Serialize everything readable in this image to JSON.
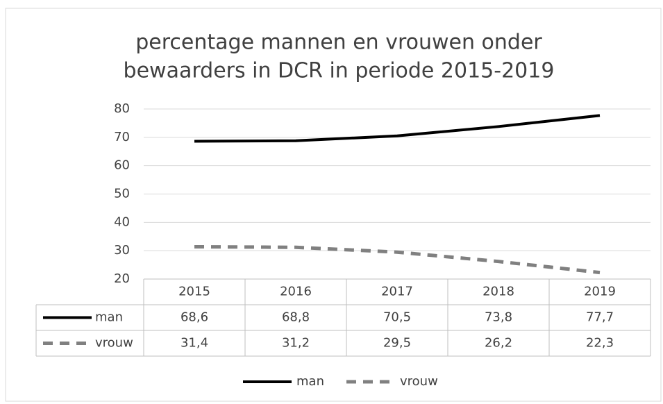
{
  "chart_data": {
    "type": "line",
    "title": [
      "percentage mannen en vrouwen onder",
      "bewaarders in DCR in periode 2015-2019"
    ],
    "categories": [
      "2015",
      "2016",
      "2017",
      "2018",
      "2019"
    ],
    "series": [
      {
        "name": "man",
        "color": "#000000",
        "dashed": false,
        "values": [
          68.6,
          68.8,
          70.5,
          73.8,
          77.7
        ],
        "value_labels": [
          "68,6",
          "68,8",
          "70,5",
          "73,8",
          "77,7"
        ]
      },
      {
        "name": "vrouw",
        "color": "#808080",
        "dashed": true,
        "values": [
          31.4,
          31.2,
          29.5,
          26.2,
          22.3
        ],
        "value_labels": [
          "31,4",
          "31,2",
          "29,5",
          "26,2",
          "22,3"
        ]
      }
    ],
    "ylim": [
      20,
      80
    ],
    "yticks": [
      20,
      30,
      40,
      50,
      60,
      70,
      80
    ],
    "grid": true,
    "legend": "bottom",
    "data_table": true
  }
}
